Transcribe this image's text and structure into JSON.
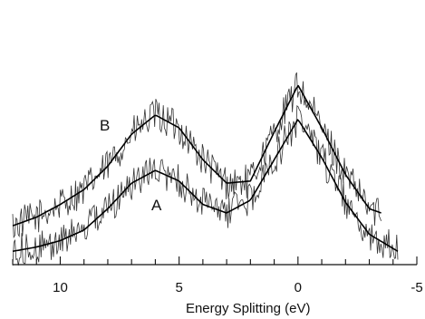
{
  "chart_data": {
    "type": "line",
    "xlabel": "Energy Splitting (eV)",
    "ylabel": "",
    "xlim": [
      12,
      -5
    ],
    "ylim": [
      0,
      1.2
    ],
    "x_reversed": true,
    "grid": false,
    "legend": "none",
    "x_major_ticks": [
      10,
      5,
      0,
      -5
    ],
    "x_tick_labels": [
      "10",
      "5",
      "0",
      "-5"
    ],
    "x_minor_step": 1,
    "series": [
      {
        "name": "B",
        "noise_x_range": [
          12,
          -3.5
        ],
        "fit": [
          {
            "x": 12,
            "y": 0.14
          },
          {
            "x": 11,
            "y": 0.18
          },
          {
            "x": 10,
            "y": 0.24
          },
          {
            "x": 9,
            "y": 0.31
          },
          {
            "x": 8,
            "y": 0.42
          },
          {
            "x": 7,
            "y": 0.57
          },
          {
            "x": 6,
            "y": 0.66
          },
          {
            "x": 5,
            "y": 0.6
          },
          {
            "x": 4,
            "y": 0.45
          },
          {
            "x": 3,
            "y": 0.34
          },
          {
            "x": 2,
            "y": 0.35
          },
          {
            "x": 1,
            "y": 0.58
          },
          {
            "x": 0,
            "y": 0.8
          },
          {
            "x": -1,
            "y": 0.6
          },
          {
            "x": -2,
            "y": 0.38
          },
          {
            "x": -3,
            "y": 0.22
          },
          {
            "x": -3.5,
            "y": 0.2
          }
        ]
      },
      {
        "name": "A",
        "noise_x_range": [
          12,
          -4.2
        ],
        "fit": [
          {
            "x": 12,
            "y": 0.02
          },
          {
            "x": 11,
            "y": 0.04
          },
          {
            "x": 10,
            "y": 0.07
          },
          {
            "x": 9,
            "y": 0.12
          },
          {
            "x": 8,
            "y": 0.22
          },
          {
            "x": 7,
            "y": 0.34
          },
          {
            "x": 6,
            "y": 0.4
          },
          {
            "x": 5,
            "y": 0.35
          },
          {
            "x": 4,
            "y": 0.24
          },
          {
            "x": 3,
            "y": 0.2
          },
          {
            "x": 2,
            "y": 0.26
          },
          {
            "x": 1,
            "y": 0.45
          },
          {
            "x": 0,
            "y": 0.64
          },
          {
            "x": -1,
            "y": 0.46
          },
          {
            "x": -2,
            "y": 0.25
          },
          {
            "x": -3,
            "y": 0.1
          },
          {
            "x": -4.2,
            "y": 0.02
          }
        ]
      }
    ],
    "annotations": [
      "B",
      "A"
    ]
  }
}
